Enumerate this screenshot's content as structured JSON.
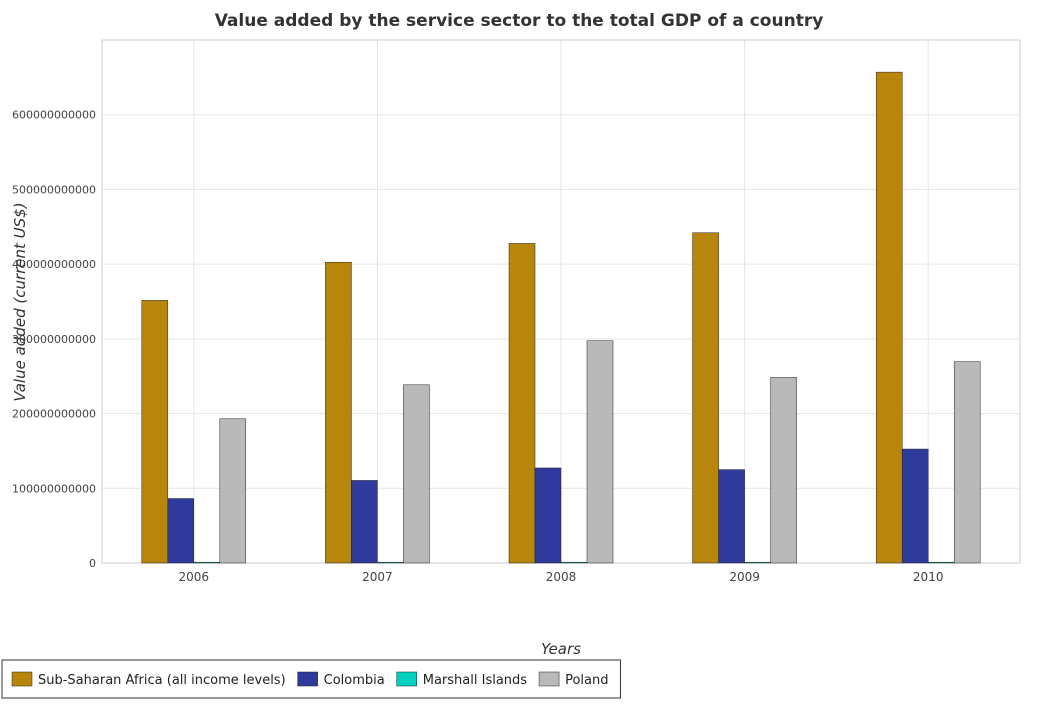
{
  "chart_data": {
    "type": "bar",
    "title": "Value added by the service sector to the total GDP of a country",
    "xlabel": "Years",
    "ylabel": "Value added (current US$)",
    "categories": [
      "2006",
      "2007",
      "2008",
      "2009",
      "2010"
    ],
    "ylim": [
      0,
      700000000000
    ],
    "yticks": [
      0,
      100000000000,
      200000000000,
      300000000000,
      400000000000,
      500000000000,
      600000000000
    ],
    "ytick_labels": [
      "0",
      "100000000000",
      "200000000000",
      "300000000000",
      "400000000000",
      "500000000000",
      "600000000000"
    ],
    "grid": true,
    "legend_position": "bottom-left",
    "series": [
      {
        "name": "Sub-Saharan Africa (all income levels)",
        "color": "#b8860b",
        "values": [
          351500000000,
          402500000000,
          427700000000,
          442000000000,
          657000000000
        ]
      },
      {
        "name": "Colombia",
        "color": "#2e3a9c",
        "values": [
          86300000000,
          110500000000,
          127200000000,
          125000000000,
          152500000000
        ]
      },
      {
        "name": "Marshall Islands",
        "color": "#00d0c0",
        "values": [
          115000000,
          120000000,
          125000000,
          128000000,
          131000000
        ]
      },
      {
        "name": "Poland",
        "color": "#b9b9b9",
        "values": [
          193000000000,
          238500000000,
          297500000000,
          248400000000,
          269500000000
        ]
      }
    ]
  }
}
